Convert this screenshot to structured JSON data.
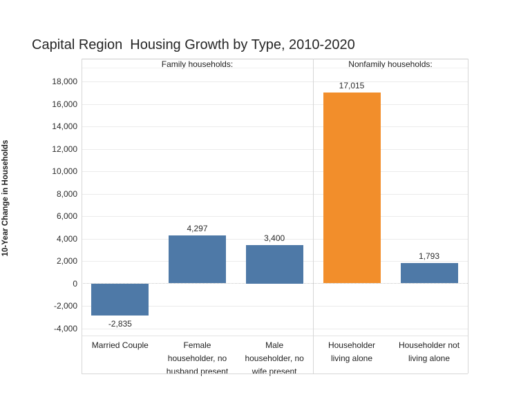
{
  "title": "Capital Region  Housing Growth by Type, 2010-2020",
  "colors": {
    "bar_blue": "#4E79A7",
    "bar_orange": "#F28E2B",
    "gridline": "#ebebeb",
    "zero_line": "#c4c4c4",
    "frame_line": "#d6d6d6",
    "text": "#1e1e1e",
    "background": "#ffffff"
  },
  "chart_data": {
    "type": "bar",
    "title": "Capital Region  Housing Growth by Type, 2010-2020",
    "xlabel": "",
    "ylabel": "10-Year Change in Households",
    "ylim": [
      -5300,
      19300
    ],
    "ytick_min": -4000,
    "ytick_max": 18000,
    "ytick_step": 2000,
    "ytick_labels": [
      "18,000",
      "16,000",
      "14,000",
      "12,000",
      "10,000",
      "8,000",
      "6,000",
      "4,000",
      "2,000",
      "0",
      "-2,000",
      "-4,000"
    ],
    "grid": "horizontal",
    "legend": "none",
    "panels": [
      {
        "label": "Family households:",
        "categories": [
          "Married Couple",
          "Female householder, no husband present",
          "Male householder, no wife present"
        ],
        "category_display": [
          "Married Couple",
          "Female\nhouseholder, no\nhusband present",
          "Male\nhouseholder, no\nwife present"
        ],
        "values": [
          -2835,
          4297,
          3400
        ],
        "value_labels": [
          "-2,835",
          "4,297",
          "3,400"
        ],
        "bar_colors": [
          "bar_blue",
          "bar_blue",
          "bar_blue"
        ]
      },
      {
        "label": "Nonfamily households:",
        "categories": [
          "Householder living alone",
          "Householder not living alone"
        ],
        "category_display": [
          "Householder\nliving alone",
          "Householder not\nliving alone"
        ],
        "values": [
          17015,
          1793
        ],
        "value_labels": [
          "17,015",
          "1,793"
        ],
        "bar_colors": [
          "bar_orange",
          "bar_blue"
        ]
      }
    ]
  }
}
